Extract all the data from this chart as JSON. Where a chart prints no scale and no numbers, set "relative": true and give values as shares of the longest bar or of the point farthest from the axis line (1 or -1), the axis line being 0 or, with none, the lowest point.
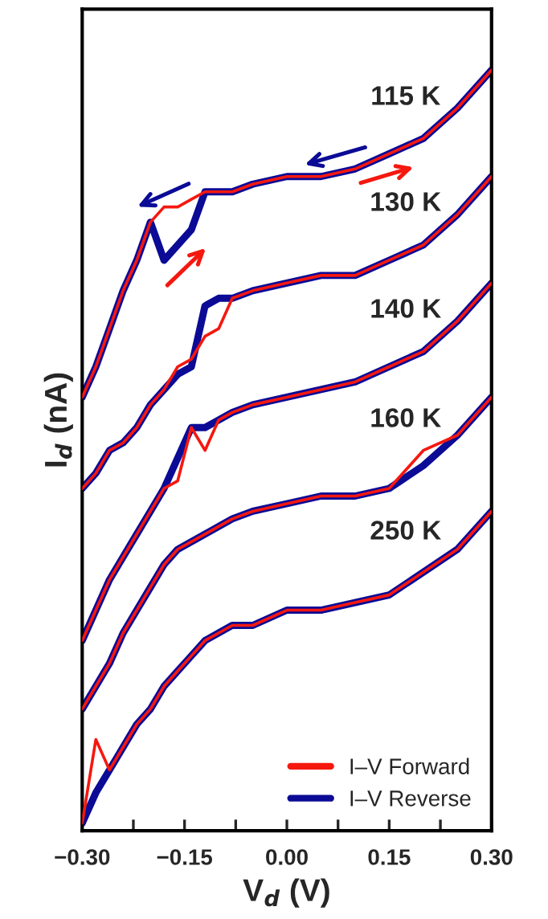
{
  "chart_data": {
    "type": "line",
    "relative": true,
    "xlabel": "V$_{d}$ (V)",
    "ylabel": "I$_{d}$ (nA)",
    "x": [
      -0.3,
      -0.28,
      -0.26,
      -0.24,
      -0.22,
      -0.2,
      -0.18,
      -0.16,
      -0.14,
      -0.12,
      -0.1,
      -0.08,
      -0.05,
      0,
      0.05,
      0.1,
      0.15,
      0.2,
      0.25,
      0.3
    ],
    "xlim": [
      -0.3,
      0.3
    ],
    "xticks": [
      {
        "value": -0.3,
        "label": "−0.30"
      },
      {
        "value": -0.225,
        "label": null
      },
      {
        "value": -0.15,
        "label": "−0.15"
      },
      {
        "value": -0.075,
        "label": null
      },
      {
        "value": 0,
        "label": "0.00"
      },
      {
        "value": 0.075,
        "label": null
      },
      {
        "value": 0.15,
        "label": "0.15"
      },
      {
        "value": 0.225,
        "label": null
      },
      {
        "value": 0.3,
        "label": "0.30"
      }
    ],
    "tick_labels": "x",
    "grid": false,
    "legend": "bottom right",
    "line_style": "solid",
    "marker": "none",
    "series": [
      {
        "name": "I–V Forward",
        "color": "#f5180f",
        "values": [
          0.57,
          0.61,
          0.66,
          0.71,
          0.75,
          0.8,
          0.82,
          0.82,
          0.83,
          0.84,
          0.84,
          0.84,
          0.85,
          0.86,
          0.86,
          0.87,
          0.89,
          0.91,
          0.95,
          1.0
        ]
      },
      {
        "name": "I–V Reverse",
        "color": "#0b0b96",
        "values": [
          0.57,
          0.61,
          0.66,
          0.71,
          0.75,
          0.8,
          0.75,
          0.77,
          0.79,
          0.84,
          0.84,
          0.84,
          0.85,
          0.86,
          0.86,
          0.87,
          0.89,
          0.91,
          0.95,
          1.0
        ]
      },
      {
        "color": "#f5180f",
        "values": [
          0.45,
          0.47,
          0.5,
          0.51,
          0.53,
          0.56,
          0.58,
          0.61,
          0.62,
          0.65,
          0.66,
          0.7,
          0.71,
          0.72,
          0.73,
          0.73,
          0.75,
          0.77,
          0.81,
          0.86
        ]
      },
      {
        "color": "#0b0b96",
        "values": [
          0.45,
          0.47,
          0.5,
          0.51,
          0.53,
          0.56,
          0.58,
          0.6,
          0.61,
          0.69,
          0.7,
          0.7,
          0.71,
          0.72,
          0.73,
          0.73,
          0.75,
          0.77,
          0.81,
          0.86
        ]
      },
      {
        "color": "#f5180f",
        "values": [
          0.25,
          0.29,
          0.33,
          0.36,
          0.39,
          0.42,
          0.45,
          0.46,
          0.53,
          0.5,
          0.54,
          0.55,
          0.56,
          0.57,
          0.58,
          0.59,
          0.61,
          0.63,
          0.67,
          0.72
        ]
      },
      {
        "color": "#0b0b96",
        "values": [
          0.25,
          0.29,
          0.33,
          0.36,
          0.39,
          0.42,
          0.45,
          0.49,
          0.53,
          0.53,
          0.54,
          0.55,
          0.56,
          0.57,
          0.58,
          0.59,
          0.61,
          0.63,
          0.67,
          0.72
        ]
      },
      {
        "color": "#f5180f",
        "values": [
          0.16,
          0.19,
          0.22,
          0.26,
          0.29,
          0.32,
          0.35,
          0.37,
          0.38,
          0.39,
          0.4,
          0.41,
          0.42,
          0.43,
          0.44,
          0.44,
          0.45,
          0.5,
          0.52,
          0.57
        ]
      },
      {
        "color": "#0b0b96",
        "values": [
          0.16,
          0.19,
          0.22,
          0.26,
          0.29,
          0.32,
          0.35,
          0.37,
          0.38,
          0.39,
          0.4,
          0.41,
          0.42,
          0.43,
          0.44,
          0.44,
          0.45,
          0.48,
          0.52,
          0.57
        ]
      },
      {
        "color": "#f5180f",
        "values": [
          0.01,
          0.12,
          0.08,
          0.11,
          0.14,
          0.16,
          0.19,
          0.21,
          0.23,
          0.25,
          0.26,
          0.27,
          0.27,
          0.29,
          0.29,
          0.3,
          0.31,
          0.34,
          0.37,
          0.42
        ]
      },
      {
        "color": "#0b0b96",
        "values": [
          0.01,
          0.05,
          0.08,
          0.11,
          0.14,
          0.16,
          0.19,
          0.21,
          0.23,
          0.25,
          0.26,
          0.27,
          0.27,
          0.29,
          0.29,
          0.3,
          0.31,
          0.34,
          0.37,
          0.42
        ]
      }
    ],
    "annotations": [
      "115 K",
      "130 K",
      "140 K",
      "160 K",
      "250 K"
    ]
  }
}
